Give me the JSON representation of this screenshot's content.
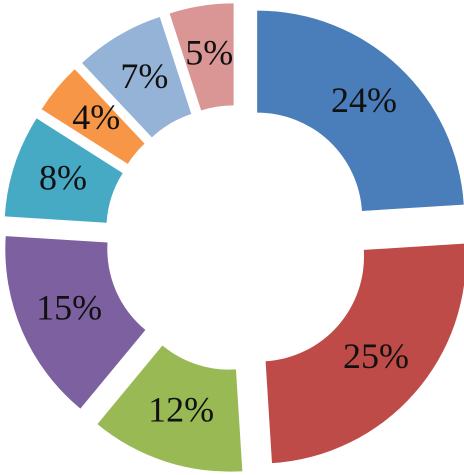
{
  "chart_data": {
    "type": "donut",
    "values": [
      24,
      25,
      12,
      15,
      8,
      4,
      7,
      5
    ],
    "value_labels": [
      "24%",
      "25%",
      "12%",
      "15%",
      "8%",
      "4%",
      "7%",
      "5%"
    ],
    "colors": [
      "#4a7ebb",
      "#be4b48",
      "#98b954",
      "#7d60a0",
      "#46aac5",
      "#f79646",
      "#95b3d7",
      "#d99694"
    ]
  }
}
